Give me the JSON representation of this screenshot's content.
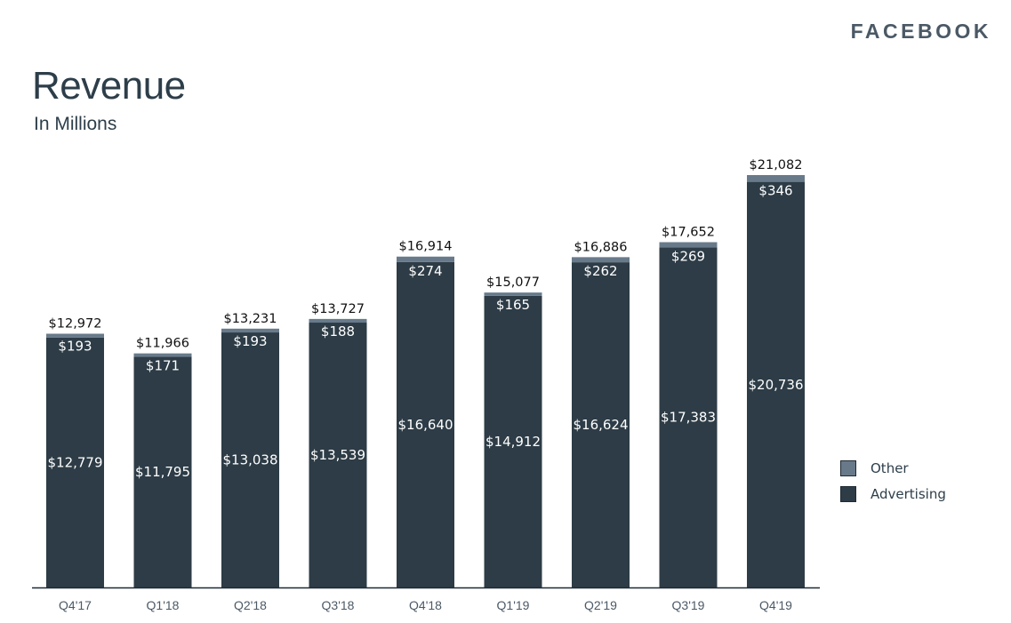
{
  "brand": "FACEBOOK",
  "title": "Revenue",
  "subtitle": "In Millions",
  "colors": {
    "advertising": "#2d3c46",
    "other": "#687a8a",
    "axis": "#1e2a33",
    "label_dark": "#111111",
    "label_light": "#ffffff",
    "tick": "#4b5966"
  },
  "legend": [
    {
      "name": "Other",
      "color": "#687a8a"
    },
    {
      "name": "Advertising",
      "color": "#2d3c46"
    }
  ],
  "chart_data": {
    "type": "bar",
    "stacked": true,
    "title": "Revenue",
    "subtitle": "In Millions",
    "categories": [
      "Q4'17",
      "Q1'18",
      "Q2'18",
      "Q3'18",
      "Q4'18",
      "Q1'19",
      "Q2'19",
      "Q3'19",
      "Q4'19"
    ],
    "series": [
      {
        "name": "Advertising",
        "values": [
          12779,
          11795,
          13038,
          13539,
          16640,
          14912,
          16624,
          17383,
          20736
        ],
        "labels": [
          "$12,779",
          "$11,795",
          "$13,038",
          "$13,539",
          "$16,640",
          "$14,912",
          "$16,624",
          "$17,383",
          "$20,736"
        ]
      },
      {
        "name": "Other",
        "values": [
          193,
          171,
          193,
          188,
          274,
          165,
          262,
          269,
          346
        ],
        "labels": [
          "$193",
          "$171",
          "$193",
          "$188",
          "$274",
          "$165",
          "$262",
          "$269",
          "$346"
        ]
      }
    ],
    "totals": [
      12972,
      11966,
      13231,
      13727,
      16914,
      15077,
      16886,
      17652,
      21082
    ],
    "total_labels": [
      "$12,972",
      "$11,966",
      "$13,231",
      "$13,727",
      "$16,914",
      "$15,077",
      "$16,886",
      "$17,652",
      "$21,082"
    ],
    "ylim": [
      0,
      21082
    ],
    "grid": false,
    "legend_position": "right"
  }
}
